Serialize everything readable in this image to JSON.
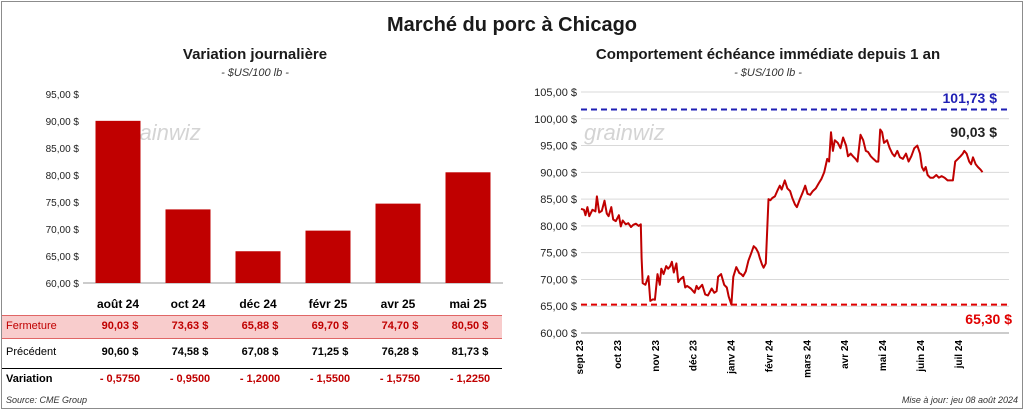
{
  "title": "Marché du porc à Chicago",
  "left": {
    "title": "Variation journalière",
    "unit": "- $US/100 lb -",
    "row_labels": {
      "close": "Fermeture",
      "prev": "Précédent",
      "var": "Variation"
    },
    "close": [
      "90,03 $",
      "73,63 $",
      "65,88 $",
      "69,70 $",
      "74,70 $",
      "80,50 $"
    ],
    "prev": [
      "90,60 $",
      "74,58 $",
      "67,08 $",
      "71,25 $",
      "76,28 $",
      "81,73 $"
    ],
    "var": [
      "- 0,5750",
      "- 0,9500",
      "- 1,2000",
      "- 1,5500",
      "- 1,5750",
      "- 1,2250"
    ]
  },
  "right": {
    "title": "Comportement  échéance immédiate depuis 1 an",
    "unit": "- $US/100 lb -",
    "max_label": "101,73 $",
    "min_label": "65,30 $",
    "last_label": "90,03 $"
  },
  "watermark": "grainwiz",
  "source": "Source: CME Group",
  "update": "Mise à jour: jeu 08 août 2024",
  "colors": {
    "bar": "#c00000",
    "line": "#c00000",
    "max_line": "#1f1fb4",
    "min_line": "#e00000"
  },
  "chart_data": [
    {
      "type": "bar",
      "title": "Variation journalière",
      "categories": [
        "août 24",
        "oct 24",
        "déc 24",
        "févr 25",
        "avr 25",
        "mai 25"
      ],
      "values": [
        90.03,
        73.63,
        65.88,
        69.7,
        74.7,
        80.5
      ],
      "ylim": [
        60,
        95
      ],
      "yticks": [
        60,
        65,
        70,
        75,
        80,
        85,
        90,
        95
      ],
      "ytick_labels": [
        "60,00 $",
        "65,00 $",
        "70,00 $",
        "75,00 $",
        "80,00 $",
        "85,00 $",
        "90,00 $",
        "95,00 $"
      ],
      "grid": false
    },
    {
      "type": "line",
      "title": "Comportement  échéance immédiate depuis 1 an",
      "x_labels": [
        "sept 23",
        "oct 23",
        "nov 23",
        "déc 23",
        "janv 24",
        "févr 24",
        "mars 24",
        "avr 24",
        "mai 24",
        "juin 24",
        "juil 24"
      ],
      "ylim": [
        60,
        105
      ],
      "yticks": [
        60,
        65,
        70,
        75,
        80,
        85,
        90,
        95,
        100,
        105
      ],
      "ytick_labels": [
        "60,00 $",
        "65,00 $",
        "70,00 $",
        "75,00 $",
        "80,00 $",
        "85,00 $",
        "90,00 $",
        "95,00 $",
        "100,00 $",
        "105,00 $"
      ],
      "max_value": 101.73,
      "min_value": 65.3,
      "last_value": 90.03,
      "x_range": [
        0,
        11.3
      ],
      "points": [
        [
          0.0,
          83.2
        ],
        [
          0.08,
          83.0
        ],
        [
          0.12,
          82.0
        ],
        [
          0.17,
          83.5
        ],
        [
          0.22,
          81.8
        ],
        [
          0.3,
          83.0
        ],
        [
          0.38,
          82.7
        ],
        [
          0.42,
          85.5
        ],
        [
          0.48,
          82.5
        ],
        [
          0.55,
          82.8
        ],
        [
          0.62,
          84.7
        ],
        [
          0.68,
          82.3
        ],
        [
          0.73,
          81.8
        ],
        [
          0.8,
          83.5
        ],
        [
          0.85,
          81.2
        ],
        [
          0.92,
          80.9
        ],
        [
          1.0,
          82.0
        ],
        [
          1.05,
          79.9
        ],
        [
          1.1,
          81.0
        ],
        [
          1.18,
          80.3
        ],
        [
          1.25,
          80.5
        ],
        [
          1.32,
          79.8
        ],
        [
          1.38,
          80.2
        ],
        [
          1.45,
          80.4
        ],
        [
          1.52,
          80.0
        ],
        [
          1.58,
          80.3
        ],
        [
          1.6,
          74.0
        ],
        [
          1.63,
          69.3
        ],
        [
          1.7,
          69.0
        ],
        [
          1.78,
          70.6
        ],
        [
          1.83,
          66.0
        ],
        [
          1.9,
          66.3
        ],
        [
          1.95,
          66.2
        ],
        [
          2.02,
          71.0
        ],
        [
          2.08,
          69.0
        ],
        [
          2.12,
          72.0
        ],
        [
          2.18,
          71.0
        ],
        [
          2.25,
          72.5
        ],
        [
          2.3,
          72.0
        ],
        [
          2.35,
          72.4
        ],
        [
          2.4,
          73.3
        ],
        [
          2.45,
          71.3
        ],
        [
          2.52,
          73.0
        ],
        [
          2.57,
          69.5
        ],
        [
          2.62,
          70.0
        ],
        [
          2.7,
          70.5
        ],
        [
          2.75,
          68.5
        ],
        [
          2.8,
          68.8
        ],
        [
          2.9,
          68.3
        ],
        [
          3.0,
          67.5
        ],
        [
          3.05,
          68.8
        ],
        [
          3.1,
          68.2
        ],
        [
          3.2,
          69.0
        ],
        [
          3.28,
          67.2
        ],
        [
          3.35,
          67.0
        ],
        [
          3.45,
          68.3
        ],
        [
          3.52,
          67.5
        ],
        [
          3.58,
          67.8
        ],
        [
          3.62,
          70.5
        ],
        [
          3.7,
          71.0
        ],
        [
          3.78,
          69.0
        ],
        [
          3.85,
          68.5
        ],
        [
          3.9,
          66.8
        ],
        [
          3.97,
          65.3
        ],
        [
          4.02,
          70.5
        ],
        [
          4.1,
          72.3
        ],
        [
          4.18,
          71.2
        ],
        [
          4.23,
          71.0
        ],
        [
          4.28,
          70.6
        ],
        [
          4.35,
          71.5
        ],
        [
          4.42,
          73.5
        ],
        [
          4.5,
          75.0
        ],
        [
          4.56,
          76.2
        ],
        [
          4.62,
          75.8
        ],
        [
          4.68,
          75.0
        ],
        [
          4.72,
          74.0
        ],
        [
          4.78,
          72.8
        ],
        [
          4.82,
          72.2
        ],
        [
          4.88,
          73.0
        ],
        [
          4.95,
          85.0
        ],
        [
          5.0,
          84.8
        ],
        [
          5.05,
          85.2
        ],
        [
          5.12,
          85.5
        ],
        [
          5.18,
          86.5
        ],
        [
          5.25,
          87.5
        ],
        [
          5.3,
          86.8
        ],
        [
          5.38,
          88.5
        ],
        [
          5.45,
          87.0
        ],
        [
          5.52,
          86.5
        ],
        [
          5.58,
          85.2
        ],
        [
          5.65,
          84.0
        ],
        [
          5.7,
          83.5
        ],
        [
          5.78,
          85.0
        ],
        [
          5.85,
          86.2
        ],
        [
          5.92,
          87.5
        ],
        [
          5.98,
          86.0
        ],
        [
          6.05,
          85.8
        ],
        [
          6.12,
          86.5
        ],
        [
          6.2,
          87.0
        ],
        [
          6.28,
          88.0
        ],
        [
          6.35,
          88.8
        ],
        [
          6.42,
          90.0
        ],
        [
          6.5,
          92.5
        ],
        [
          6.55,
          92.0
        ],
        [
          6.6,
          97.5
        ],
        [
          6.65,
          94.0
        ],
        [
          6.7,
          96.0
        ],
        [
          6.78,
          95.5
        ],
        [
          6.85,
          94.5
        ],
        [
          6.92,
          96.5
        ],
        [
          7.0,
          95.0
        ],
        [
          7.05,
          93.0
        ],
        [
          7.12,
          93.5
        ],
        [
          7.18,
          93.0
        ],
        [
          7.25,
          92.5
        ],
        [
          7.3,
          92.0
        ],
        [
          7.38,
          97.0
        ],
        [
          7.45,
          96.0
        ],
        [
          7.52,
          94.0
        ],
        [
          7.58,
          93.8
        ],
        [
          7.65,
          93.0
        ],
        [
          7.72,
          92.5
        ],
        [
          7.8,
          92.0
        ],
        [
          7.85,
          92.0
        ],
        [
          7.9,
          98.0
        ],
        [
          7.95,
          97.5
        ],
        [
          8.0,
          95.5
        ],
        [
          8.08,
          96.0
        ],
        [
          8.15,
          94.5
        ],
        [
          8.22,
          93.5
        ],
        [
          8.28,
          93.0
        ],
        [
          8.35,
          94.0
        ],
        [
          8.42,
          92.8
        ],
        [
          8.5,
          92.5
        ],
        [
          8.58,
          93.5
        ],
        [
          8.65,
          92.0
        ],
        [
          8.72,
          93.0
        ],
        [
          8.8,
          94.5
        ],
        [
          8.88,
          95.0
        ],
        [
          8.95,
          93.5
        ],
        [
          9.0,
          91.0
        ],
        [
          9.05,
          90.3
        ],
        [
          9.1,
          91.0
        ],
        [
          9.15,
          89.5
        ],
        [
          9.22,
          89.0
        ],
        [
          9.3,
          89.0
        ],
        [
          9.38,
          89.5
        ],
        [
          9.45,
          89.0
        ],
        [
          9.52,
          89.3
        ],
        [
          9.6,
          89.0
        ],
        [
          9.68,
          88.5
        ],
        [
          9.75,
          88.5
        ],
        [
          9.82,
          88.5
        ],
        [
          9.88,
          92.0
        ],
        [
          9.95,
          92.5
        ],
        [
          10.02,
          93.0
        ],
        [
          10.08,
          93.5
        ],
        [
          10.12,
          94.0
        ],
        [
          10.18,
          93.5
        ],
        [
          10.25,
          92.0
        ],
        [
          10.3,
          91.5
        ],
        [
          10.35,
          92.8
        ],
        [
          10.42,
          91.5
        ],
        [
          10.48,
          91.0
        ],
        [
          10.55,
          90.5
        ],
        [
          10.6,
          90.03
        ]
      ]
    }
  ]
}
